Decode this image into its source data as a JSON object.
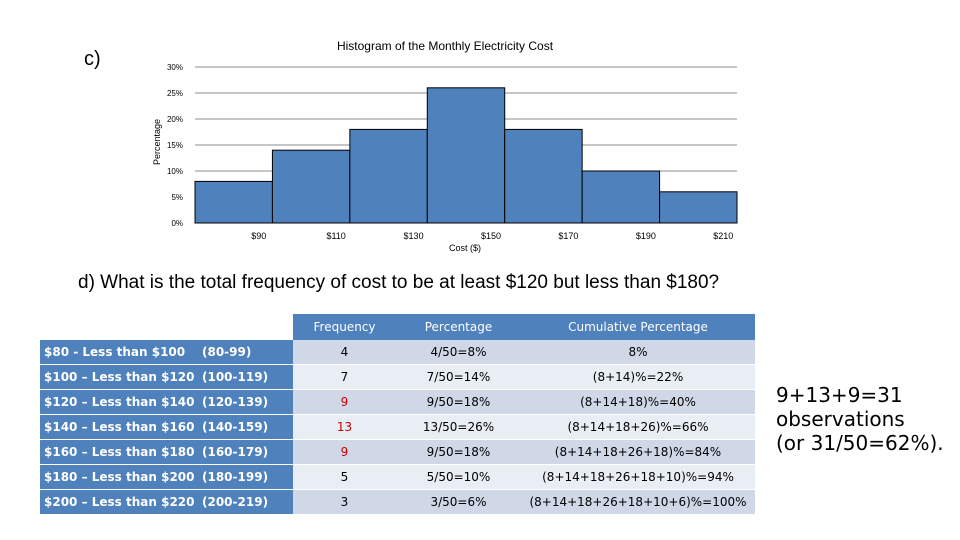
{
  "part_c_label": "c)",
  "chart_data": {
    "type": "bar",
    "title": "Histogram of the Monthly Electricity Cost",
    "xlabel": "Cost ($)",
    "ylabel": "Percentage",
    "categories": [
      "$90",
      "$110",
      "$130",
      "$150",
      "$170",
      "$190",
      "$210"
    ],
    "values": [
      8,
      14,
      18,
      26,
      18,
      10,
      6
    ],
    "y_ticks": [
      "0%",
      "5%",
      "10%",
      "15%",
      "20%",
      "25%",
      "30%"
    ],
    "ylim": [
      0,
      30
    ],
    "grid": true,
    "bar_color": "#4f81bd"
  },
  "question": "d) What is the total frequency of cost to be at least $120 but less than $180?",
  "table": {
    "headers": [
      "Frequency",
      "Percentage",
      "Cumulative Percentage"
    ],
    "rows": [
      {
        "label": "$80 - Less than $100",
        "range": "(80-99)",
        "frequency": "4",
        "percentage": "4/50=8%",
        "cumulative": "8%",
        "highlight": false
      },
      {
        "label": "$100 – Less than $120",
        "range": "(100-119)",
        "frequency": "7",
        "percentage": "7/50=14%",
        "cumulative": "(8+14)%=22%",
        "highlight": false
      },
      {
        "label": "$120 – Less than $140",
        "range": "(120-139)",
        "frequency": "9",
        "percentage": "9/50=18%",
        "cumulative": "(8+14+18)%=40%",
        "highlight": true
      },
      {
        "label": "$140 – Less than $160",
        "range": "(140-159)",
        "frequency": "13",
        "percentage": "13/50=26%",
        "cumulative": "(8+14+18+26)%=66%",
        "highlight": true
      },
      {
        "label": "$160 – Less than $180",
        "range": "(160-179)",
        "frequency": "9",
        "percentage": "9/50=18%",
        "cumulative": "(8+14+18+26+18)%=84%",
        "highlight": true
      },
      {
        "label": "$180 – Less than $200",
        "range": "(180-199)",
        "frequency": "5",
        "percentage": "5/50=10%",
        "cumulative": "(8+14+18+26+18+10)%=94%",
        "highlight": false
      },
      {
        "label": "$200 – Less than $220",
        "range": "(200-219)",
        "frequency": "3",
        "percentage": "3/50=6%",
        "cumulative": "(8+14+18+26+18+10+6)%=100%",
        "highlight": false
      }
    ]
  },
  "answer_lines": [
    "9+13+9=31",
    "observations",
    "(or 31/50=62%)."
  ],
  "colors": {
    "highlight_text": "#c00000"
  }
}
